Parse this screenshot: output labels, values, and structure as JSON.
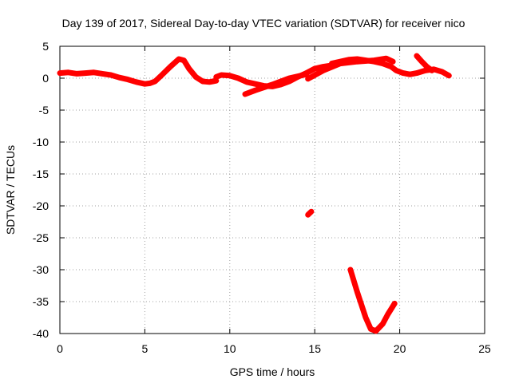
{
  "chart_data": {
    "type": "line",
    "title": "Day 139 of 2017, Sidereal Day-to-day VTEC variation (SDTVAR) for receiver nico",
    "xlabel": "GPS time / hours",
    "ylabel": "SDTVAR / TECUs",
    "xlim": [
      0,
      25
    ],
    "ylim": [
      -40,
      5
    ],
    "xticks": [
      0,
      5,
      10,
      15,
      20,
      25
    ],
    "yticks": [
      5,
      0,
      -5,
      -10,
      -15,
      -20,
      -25,
      -30,
      -35,
      -40
    ],
    "grid": true,
    "color": "#ff0000",
    "series": [
      {
        "name": "segment-1",
        "x": [
          0,
          0.5,
          1,
          1.5,
          2,
          2.5,
          3,
          3.5,
          4,
          4.5,
          5,
          5.3,
          5.6,
          6,
          6.5,
          7,
          7.3,
          7.6,
          8,
          8.4,
          8.8,
          9,
          9.2
        ],
        "y": [
          0.8,
          0.9,
          0.7,
          0.8,
          0.9,
          0.7,
          0.5,
          0.1,
          -0.2,
          -0.6,
          -0.9,
          -0.8,
          -0.5,
          0.5,
          1.8,
          3.0,
          2.8,
          1.5,
          0.2,
          -0.5,
          -0.6,
          -0.5,
          -0.4
        ]
      },
      {
        "name": "segment-2",
        "x": [
          9.2,
          9.5,
          10,
          10.5,
          11,
          11.5,
          12,
          12.5,
          13,
          13.5,
          14,
          14.5,
          15,
          15.5,
          16
        ],
        "y": [
          0.2,
          0.5,
          0.4,
          0.0,
          -0.6,
          -0.9,
          -1.2,
          -1.3,
          -1.0,
          -0.5,
          0.2,
          0.8,
          1.5,
          1.8,
          2.0
        ]
      },
      {
        "name": "segment-3",
        "x": [
          10.9,
          11.5,
          12.5,
          13.5,
          14.5
        ],
        "y": [
          -2.5,
          -1.9,
          -1.0,
          0.0,
          0.6
        ]
      },
      {
        "name": "segment-4",
        "x": [
          14.6,
          15.5,
          16.5,
          17.5,
          18.5,
          19.2,
          19.6
        ],
        "y": [
          -0.1,
          1.2,
          2.3,
          2.6,
          2.8,
          3.1,
          2.6
        ]
      },
      {
        "name": "segment-5",
        "x": [
          16,
          16.5,
          17,
          17.5,
          18,
          18.5,
          19,
          19.5,
          19.8,
          20.2,
          20.6,
          21,
          21.5,
          22,
          22.5,
          22.9
        ],
        "y": [
          2.3,
          2.6,
          2.9,
          3.0,
          2.8,
          2.6,
          2.3,
          1.8,
          1.2,
          0.8,
          0.6,
          0.8,
          1.2,
          1.4,
          1.0,
          0.4
        ]
      },
      {
        "name": "segment-6",
        "x": [
          21.0,
          21.3,
          21.6,
          21.9
        ],
        "y": [
          3.5,
          2.6,
          1.8,
          1.2
        ]
      },
      {
        "name": "segment-7",
        "x": [
          14.6,
          14.8
        ],
        "y": [
          -21.4,
          -20.9
        ]
      },
      {
        "name": "segment-8",
        "x": [
          17.1,
          17.5,
          18.0,
          18.3,
          18.6,
          19.0,
          19.3,
          19.7
        ],
        "y": [
          -30.0,
          -33.5,
          -37.5,
          -39.3,
          -39.6,
          -38.5,
          -37.0,
          -35.3
        ]
      }
    ]
  }
}
